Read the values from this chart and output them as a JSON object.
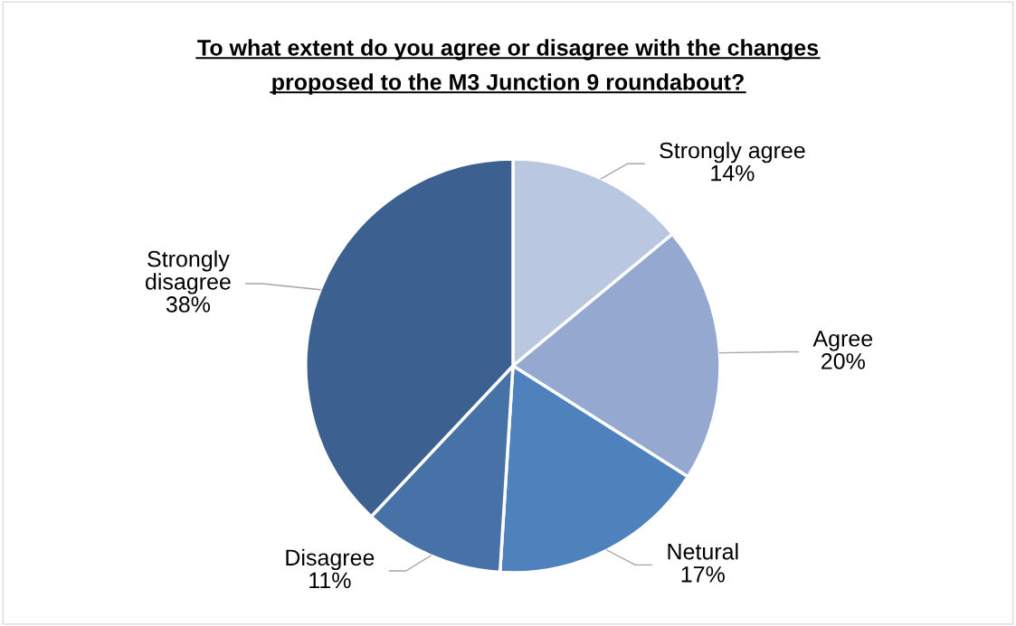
{
  "chart_data": {
    "type": "pie",
    "title": "To what extent do you agree or disagree with the changes\nproposed to the M3 Junction 9 roundabout?",
    "categories": [
      "Strongly agree",
      "Agree",
      "Netural",
      "Disagree",
      "Strongly\ndisagree"
    ],
    "values": [
      14,
      20,
      17,
      11,
      38
    ],
    "colors": [
      "#b9c7e0",
      "#95a9d0",
      "#4f81bd",
      "#4672a8",
      "#3c6190"
    ],
    "value_labels": [
      "14%",
      "20%",
      "17%",
      "11%",
      "38%"
    ]
  }
}
